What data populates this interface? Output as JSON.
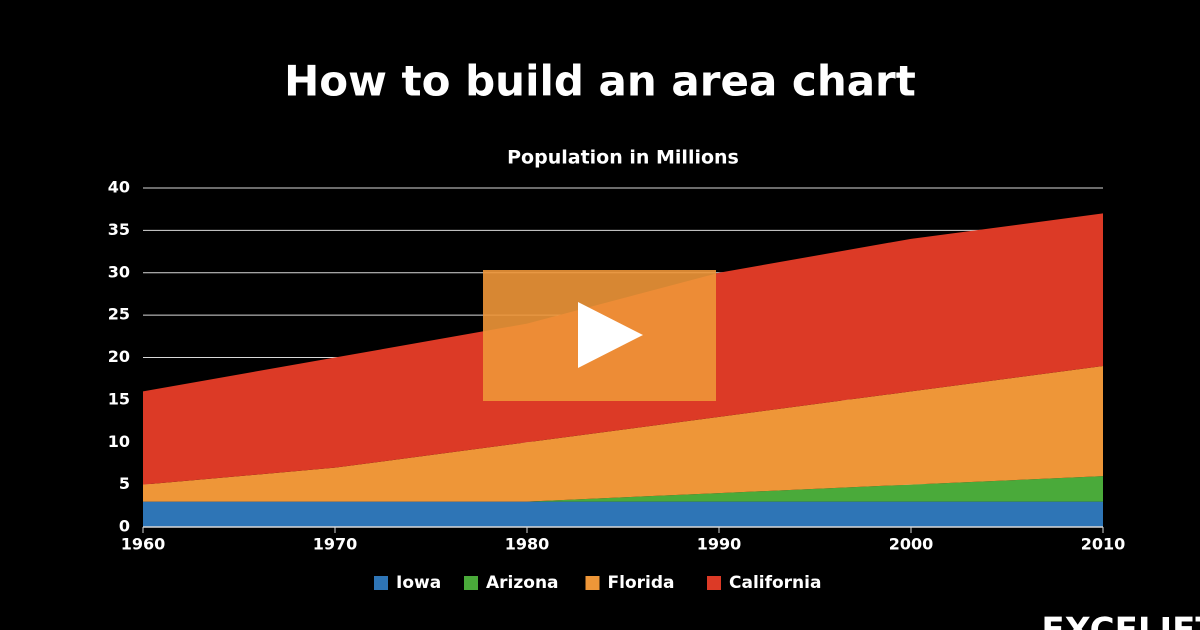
{
  "chart_data": {
    "type": "stacked-area",
    "title": "How to build an area chart",
    "subtitle": "Population in Millions",
    "x": [
      1960,
      1970,
      1980,
      1990,
      2000,
      2010
    ],
    "series": [
      {
        "name": "Iowa",
        "color": "#2e75b6",
        "values": [
          3,
          3,
          3,
          3,
          3,
          3
        ]
      },
      {
        "name": "Arizona",
        "color": "#4aaa3a",
        "values": [
          0,
          0,
          0,
          1,
          2,
          3
        ]
      },
      {
        "name": "Florida",
        "color": "#ee9638",
        "values": [
          2,
          4,
          7,
          9,
          11,
          13
        ]
      },
      {
        "name": "California",
        "color": "#dc3a26",
        "values": [
          11,
          13,
          14,
          17,
          18,
          18
        ]
      }
    ],
    "xlim": [
      1960,
      2010
    ],
    "xticks": [
      1960,
      1970,
      1980,
      1990,
      2000,
      2010
    ],
    "ylim": [
      0,
      40
    ],
    "yticks": [
      0,
      5,
      10,
      15,
      20,
      25,
      30,
      35,
      40
    ],
    "grid": true,
    "legend": "bottom",
    "brand": "EXCELJET"
  }
}
